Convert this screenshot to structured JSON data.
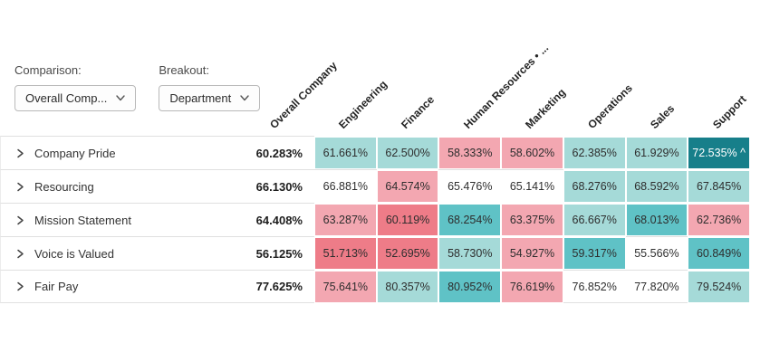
{
  "controls": {
    "comparison": {
      "label": "Comparison:",
      "value": "Overall Comp..."
    },
    "breakout": {
      "label": "Breakout:",
      "value": "Department"
    }
  },
  "palette": {
    "tealLight": "#a5dad8",
    "tealMid": "#5fc2c6",
    "tealDark": "#177f8a",
    "pink": "#f3a7b1",
    "red": "#ee7c88",
    "white": "#ffffff",
    "darkCellText": "#ffffff"
  },
  "chart_data": {
    "type": "heatmap",
    "columns": [
      "Overall Company",
      "Engineering",
      "Finance",
      "Human Resources • ...",
      "Marketing",
      "Operations",
      "Sales",
      "Support"
    ],
    "rows": [
      {
        "label": "Company Pride",
        "overall": "60.283%",
        "cells": [
          {
            "value": "61.661%",
            "color": "tealLight"
          },
          {
            "value": "62.500%",
            "color": "tealLight"
          },
          {
            "value": "58.333%",
            "color": "pink"
          },
          {
            "value": "58.602%",
            "color": "pink"
          },
          {
            "value": "62.385%",
            "color": "tealLight"
          },
          {
            "value": "61.929%",
            "color": "tealLight"
          },
          {
            "value": "72.535%",
            "color": "tealDark",
            "marker": "^",
            "textColor": "#ffffff"
          }
        ]
      },
      {
        "label": "Resourcing",
        "overall": "66.130%",
        "cells": [
          {
            "value": "66.881%",
            "color": "white"
          },
          {
            "value": "64.574%",
            "color": "pink"
          },
          {
            "value": "65.476%",
            "color": "white"
          },
          {
            "value": "65.141%",
            "color": "white"
          },
          {
            "value": "68.276%",
            "color": "tealLight"
          },
          {
            "value": "68.592%",
            "color": "tealLight"
          },
          {
            "value": "67.845%",
            "color": "tealLight"
          }
        ]
      },
      {
        "label": "Mission Statement",
        "overall": "64.408%",
        "cells": [
          {
            "value": "63.287%",
            "color": "pink"
          },
          {
            "value": "60.119%",
            "color": "red"
          },
          {
            "value": "68.254%",
            "color": "tealMid"
          },
          {
            "value": "63.375%",
            "color": "pink"
          },
          {
            "value": "66.667%",
            "color": "tealLight"
          },
          {
            "value": "68.013%",
            "color": "tealMid"
          },
          {
            "value": "62.736%",
            "color": "pink"
          }
        ]
      },
      {
        "label": "Voice is Valued",
        "overall": "56.125%",
        "cells": [
          {
            "value": "51.713%",
            "color": "red"
          },
          {
            "value": "52.695%",
            "color": "red"
          },
          {
            "value": "58.730%",
            "color": "tealLight"
          },
          {
            "value": "54.927%",
            "color": "pink"
          },
          {
            "value": "59.317%",
            "color": "tealMid"
          },
          {
            "value": "55.566%",
            "color": "white"
          },
          {
            "value": "60.849%",
            "color": "tealMid"
          }
        ]
      },
      {
        "label": "Fair Pay",
        "overall": "77.625%",
        "cells": [
          {
            "value": "75.641%",
            "color": "pink"
          },
          {
            "value": "80.357%",
            "color": "tealLight"
          },
          {
            "value": "80.952%",
            "color": "tealMid"
          },
          {
            "value": "76.619%",
            "color": "pink"
          },
          {
            "value": "76.852%",
            "color": "white"
          },
          {
            "value": "77.820%",
            "color": "white"
          },
          {
            "value": "79.524%",
            "color": "tealLight"
          }
        ]
      }
    ]
  }
}
